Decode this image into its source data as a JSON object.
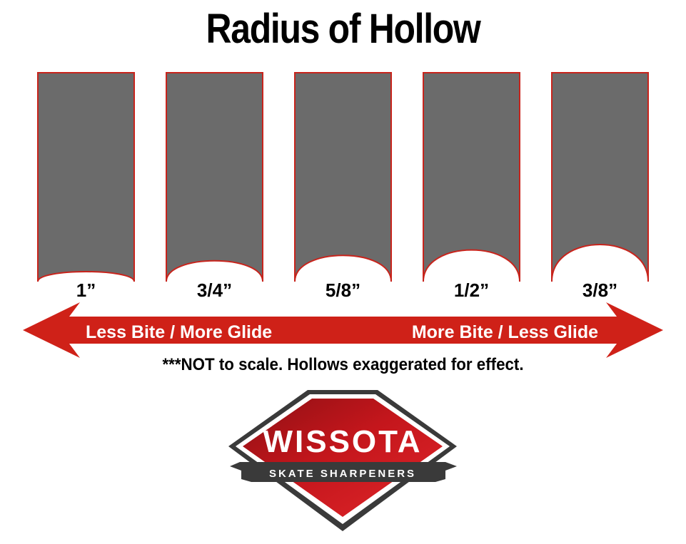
{
  "title": "Radius of Hollow",
  "blades": [
    {
      "label": "1”",
      "radius_in": 1.0
    },
    {
      "label": "3/4”",
      "radius_in": 0.75
    },
    {
      "label": "5/8”",
      "radius_in": 0.625
    },
    {
      "label": "1/2”",
      "radius_in": 0.5
    },
    {
      "label": "3/8”",
      "radius_in": 0.375
    }
  ],
  "arrow": {
    "left_label": "Less Bite / More Glide",
    "right_label": "More Bite / Less Glide"
  },
  "note": "***NOT to scale. Hollows exaggerated for effect.",
  "logo": {
    "brand": "WISSOTA",
    "tagline": "SKATE SHARPENERS"
  },
  "colors": {
    "blade_fill": "#6b6b6b",
    "blade_stroke": "#c8241c",
    "arrow_red": "#cf2118",
    "logo_red": "#c4161c",
    "logo_dark": "#3a3a3a"
  }
}
